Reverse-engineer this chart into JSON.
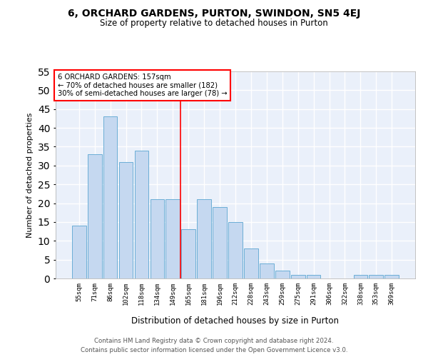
{
  "title1": "6, ORCHARD GARDENS, PURTON, SWINDON, SN5 4EJ",
  "title2": "Size of property relative to detached houses in Purton",
  "xlabel": "Distribution of detached houses by size in Purton",
  "ylabel": "Number of detached properties",
  "categories": [
    "55sqm",
    "71sqm",
    "86sqm",
    "102sqm",
    "118sqm",
    "134sqm",
    "149sqm",
    "165sqm",
    "181sqm",
    "196sqm",
    "212sqm",
    "228sqm",
    "243sqm",
    "259sqm",
    "275sqm",
    "291sqm",
    "306sqm",
    "322sqm",
    "338sqm",
    "353sqm",
    "369sqm"
  ],
  "values": [
    14,
    33,
    43,
    31,
    34,
    21,
    21,
    13,
    21,
    19,
    15,
    8,
    4,
    2,
    1,
    1,
    0,
    0,
    1,
    1,
    1
  ],
  "bar_color": "#c5d8f0",
  "bar_edge_color": "#6baed6",
  "red_line_index": 6.5,
  "annotation_line1": "6 ORCHARD GARDENS: 157sqm",
  "annotation_line2": "← 70% of detached houses are smaller (182)",
  "annotation_line3": "30% of semi-detached houses are larger (78) →",
  "ylim": [
    0,
    55
  ],
  "yticks": [
    0,
    5,
    10,
    15,
    20,
    25,
    30,
    35,
    40,
    45,
    50,
    55
  ],
  "background_color": "#eaf0fa",
  "grid_color": "#ffffff",
  "footer1": "Contains HM Land Registry data © Crown copyright and database right 2024.",
  "footer2": "Contains public sector information licensed under the Open Government Licence v3.0."
}
